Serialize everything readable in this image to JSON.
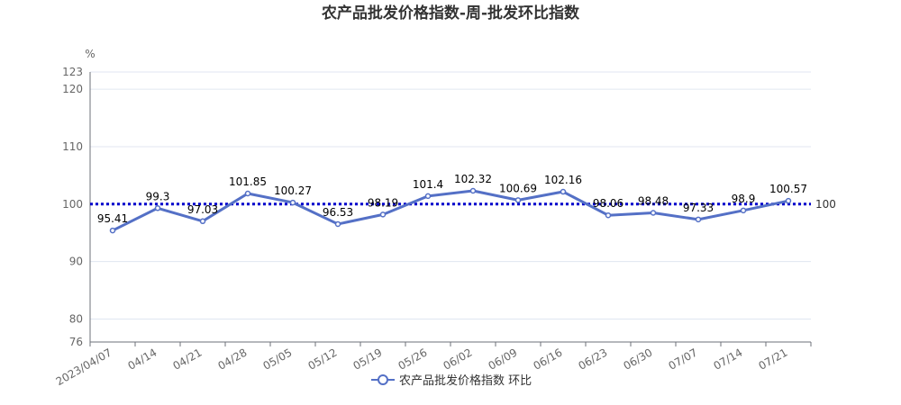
{
  "chart_data": {
    "type": "line",
    "title": "农产品批发价格指数-周-批发环比指数",
    "unit_label": "%",
    "xlabel": "",
    "ylabel": "%",
    "categories": [
      "2023/04/07",
      "04/14",
      "04/21",
      "04/28",
      "05/05",
      "05/12",
      "05/19",
      "05/26",
      "06/02",
      "06/09",
      "06/16",
      "06/23",
      "06/30",
      "07/07",
      "07/14",
      "07/21"
    ],
    "series": [
      {
        "name": "农产品批发价格指数 环比",
        "color": "#5470c6",
        "values": [
          95.41,
          99.3,
          97.03,
          101.85,
          100.27,
          96.53,
          98.19,
          101.4,
          102.32,
          100.69,
          102.16,
          98.06,
          98.48,
          97.33,
          98.9,
          100.57
        ],
        "labels": [
          "95.41",
          "99.3",
          "97.03",
          "101.85",
          "100.27",
          "96.53",
          "98.19",
          "101.4",
          "102.32",
          "100.69",
          "102.16",
          "98.06",
          "98.48",
          "97.33",
          "98.9",
          "100.57"
        ]
      }
    ],
    "ylim": [
      76,
      123
    ],
    "yticks": [
      76,
      80,
      90,
      100,
      110,
      120,
      123
    ],
    "reference_line": {
      "value": 100,
      "label": "100",
      "color": "#0000cc"
    },
    "grid": true,
    "legend": {
      "position": "bottom-center"
    }
  }
}
